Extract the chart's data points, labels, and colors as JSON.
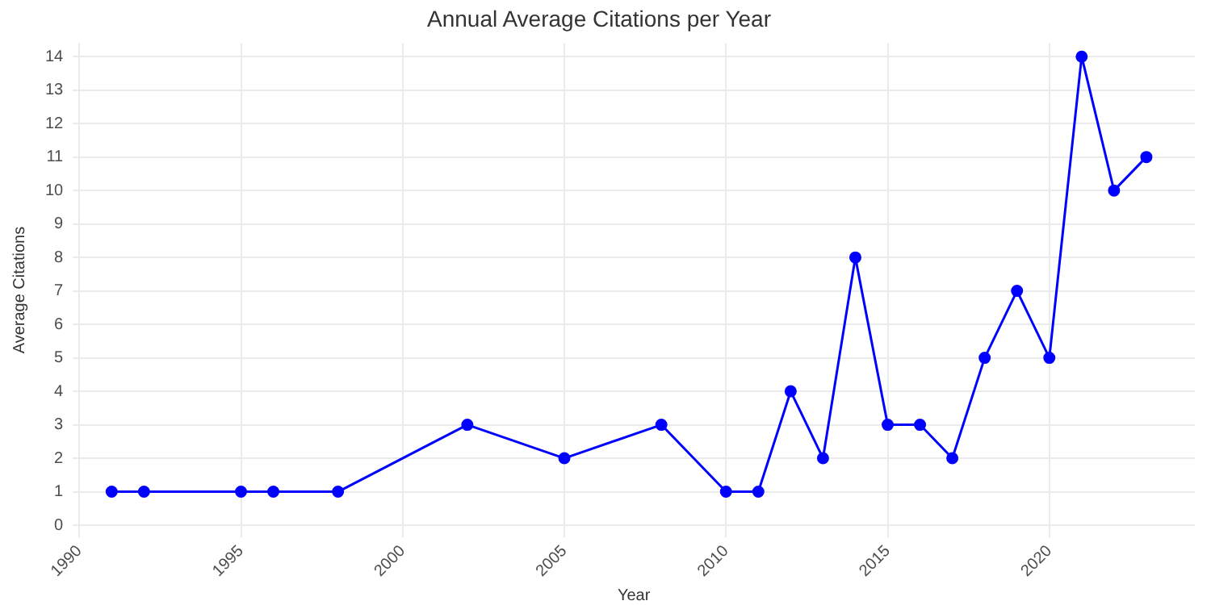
{
  "chart_data": {
    "type": "line",
    "title": "Annual Average Citations per Year",
    "xlabel": "Year",
    "ylabel": "Average Citations",
    "x": [
      1991,
      1992,
      1995,
      1996,
      1998,
      2002,
      2005,
      2008,
      2010,
      2011,
      2012,
      2013,
      2014,
      2015,
      2016,
      2017,
      2018,
      2019,
      2020,
      2021,
      2022,
      2023
    ],
    "series": [
      {
        "color": "#0000ff",
        "values": [
          1,
          1,
          1,
          1,
          1,
          3,
          2,
          3,
          1,
          1,
          4,
          2,
          8,
          3,
          3,
          2,
          5,
          7,
          5,
          14,
          10,
          11
        ]
      }
    ],
    "xlim": [
      1989.8,
      2024.5
    ],
    "xticks": [
      1990,
      1995,
      2000,
      2005,
      2010,
      2015,
      2020
    ],
    "ylim": [
      -0.35,
      14.4
    ],
    "yticks": [
      0,
      1,
      2,
      3,
      4,
      5,
      6,
      7,
      8,
      9,
      10,
      11,
      12,
      13,
      14
    ],
    "grid": true,
    "legend": false,
    "marker": "circle",
    "line_style": "solid"
  }
}
